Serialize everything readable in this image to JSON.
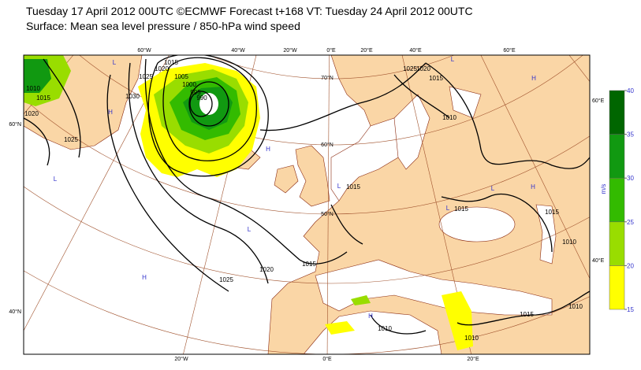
{
  "header": {
    "line1": "Tuesday 17 April 2012 00UTC ©ECMWF Forecast t+168 VT: Tuesday 24 April 2012 00UTC",
    "line2": "Surface: Mean sea level pressure / 850-hPa wind speed"
  },
  "legend": {
    "unit": "m/s",
    "levels": [
      15,
      20,
      25,
      30,
      35,
      40
    ],
    "colors": [
      "#ffff00",
      "#99dd00",
      "#33bb00",
      "#119911",
      "#006600"
    ]
  },
  "map": {
    "lon_labels_top": [
      "60°W",
      "40°W",
      "20°W",
      "0°E",
      "20°E",
      "40°E",
      "60°E"
    ],
    "lon_labels_bottom": [
      "20°W",
      "0°E",
      "20°E"
    ],
    "lat_labels_left": [
      "60°N",
      "40°N"
    ],
    "lat_labels_right": [
      "60°E",
      "40°E"
    ],
    "lat_labels_inner": [
      "70°N",
      "60°N",
      "50°N"
    ],
    "isobar_labels": [
      "1010",
      "1015",
      "1020",
      "1025",
      "1030",
      "1025",
      "1020",
      "1015",
      "1005",
      "1000",
      "995",
      "990",
      "1025",
      "1020",
      "1015",
      "1015",
      "1025",
      "1020",
      "1015",
      "1010",
      "1015",
      "1015",
      "1010",
      "1015",
      "1010",
      "1010",
      "1010"
    ],
    "pressure_centers": [
      "L",
      "L",
      "H",
      "H",
      "L",
      "H",
      "L",
      "H",
      "L",
      "H",
      "L",
      "L",
      "H"
    ]
  }
}
